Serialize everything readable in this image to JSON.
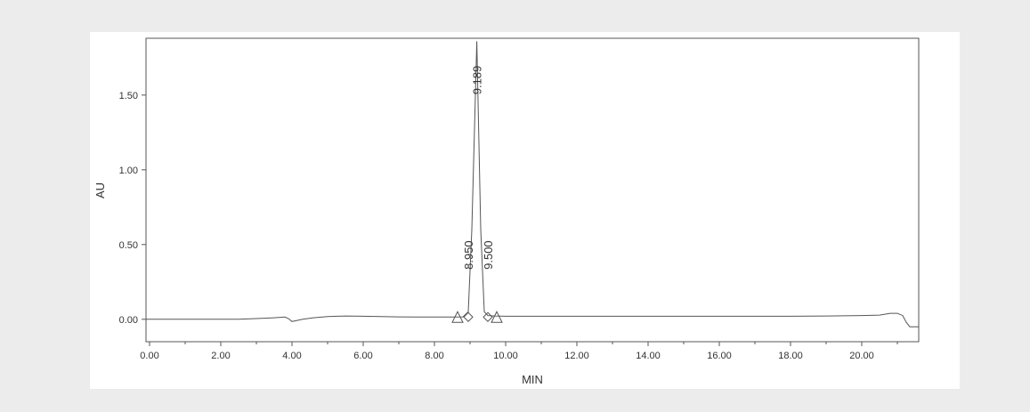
{
  "chart_data": {
    "type": "line",
    "title": "",
    "xlabel": "MIN",
    "ylabel": "AU",
    "xlim": [
      -0.1,
      21.6
    ],
    "ylim": [
      -0.15,
      1.88
    ],
    "grid": false,
    "x_ticks": [
      0,
      2,
      4,
      6,
      8,
      10,
      12,
      14,
      16,
      18,
      20
    ],
    "x_tick_labels": [
      "0.00",
      "2.00",
      "4.00",
      "6.00",
      "8.00",
      "10.00",
      "12.00",
      "14.00",
      "16.00",
      "18.00",
      "20.00"
    ],
    "y_ticks": [
      0,
      0.5,
      1,
      1.5
    ],
    "y_tick_labels": [
      "0.00",
      "0.50",
      "1.00",
      "1.50"
    ],
    "series": [
      {
        "x": [
          -0.1,
          0.5,
          1.0,
          1.5,
          2.0,
          2.5,
          3.0,
          3.5,
          3.8,
          3.9,
          4.0,
          4.1,
          4.3,
          4.6,
          5.0,
          5.5,
          6.0,
          6.5,
          7.0,
          7.5,
          8.0,
          8.5,
          8.8,
          8.95,
          9.05,
          9.189,
          9.3,
          9.4,
          9.5,
          9.7,
          10.0,
          11.0,
          12.0,
          13.0,
          14.0,
          15.0,
          16.0,
          17.0,
          18.0,
          19.0,
          20.0,
          20.5,
          20.8,
          21.0,
          21.15,
          21.25,
          21.35,
          21.6
        ],
        "y": [
          0.0,
          0.0,
          0.0,
          0.0,
          0.0,
          0.0,
          0.005,
          0.01,
          0.015,
          0.005,
          -0.015,
          -0.01,
          0.0,
          0.01,
          0.018,
          0.022,
          0.02,
          0.018,
          0.016,
          0.015,
          0.015,
          0.015,
          0.016,
          0.05,
          0.6,
          1.86,
          0.6,
          0.05,
          0.025,
          0.022,
          0.02,
          0.02,
          0.02,
          0.02,
          0.02,
          0.02,
          0.02,
          0.02,
          0.02,
          0.022,
          0.025,
          0.028,
          0.04,
          0.04,
          0.025,
          -0.02,
          -0.05,
          -0.05
        ]
      }
    ],
    "peak_labels": [
      {
        "x": 8.95,
        "label": "8.950"
      },
      {
        "x": 9.189,
        "label": "9.189"
      },
      {
        "x": 9.5,
        "label": "9.500"
      }
    ],
    "markers": [
      {
        "shape": "triangle",
        "x": 8.65
      },
      {
        "shape": "diamond",
        "x": 8.95
      },
      {
        "shape": "diamond",
        "x": 9.5
      },
      {
        "shape": "triangle",
        "x": 9.75
      }
    ]
  }
}
